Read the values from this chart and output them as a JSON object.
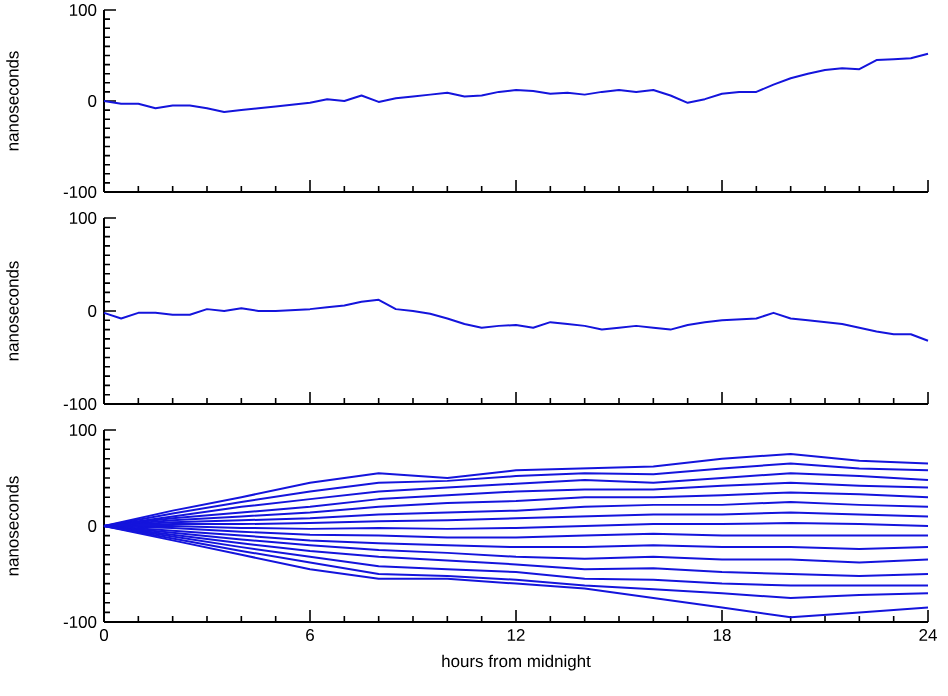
{
  "chart_data": [
    {
      "type": "line",
      "ylabel": "nanoseconds",
      "xlim": [
        0,
        24
      ],
      "ylim": [
        -100,
        100
      ],
      "xticks": [
        0,
        6,
        12,
        18,
        24
      ],
      "yticks": [
        -100,
        0,
        100
      ],
      "tick_labels": "y",
      "marker": "none",
      "x": [
        0,
        0.5,
        1,
        1.5,
        2,
        2.5,
        3,
        3.5,
        4,
        4.5,
        5,
        5.5,
        6,
        6.5,
        7,
        7.5,
        8,
        8.5,
        9,
        9.5,
        10,
        10.5,
        11,
        11.5,
        12,
        12.5,
        13,
        13.5,
        14,
        14.5,
        15,
        15.5,
        16,
        16.5,
        17,
        17.5,
        18,
        18.5,
        19,
        19.5,
        20,
        20.5,
        21,
        21.5,
        22,
        22.5,
        23,
        23.5,
        24
      ],
      "series": [
        {
          "color": "#1414dc",
          "values": [
            0,
            -3,
            -3,
            -8,
            -5,
            -5,
            -8,
            -12,
            -10,
            -8,
            -6,
            -4,
            -2,
            2,
            0,
            6,
            -1,
            3,
            5,
            7,
            9,
            5,
            6,
            10,
            12,
            11,
            8,
            9,
            7,
            10,
            12,
            10,
            12,
            6,
            -2,
            2,
            8,
            10,
            10,
            18,
            25,
            30,
            34,
            36,
            35,
            45,
            46,
            47,
            52
          ]
        }
      ]
    },
    {
      "type": "line",
      "ylabel": "nanoseconds",
      "xlim": [
        0,
        24
      ],
      "ylim": [
        -100,
        100
      ],
      "xticks": [
        0,
        6,
        12,
        18,
        24
      ],
      "yticks": [
        -100,
        0,
        100
      ],
      "tick_labels": "y",
      "marker": "none",
      "x": [
        0,
        0.5,
        1,
        1.5,
        2,
        2.5,
        3,
        3.5,
        4,
        4.5,
        5,
        5.5,
        6,
        6.5,
        7,
        7.5,
        8,
        8.5,
        9,
        9.5,
        10,
        10.5,
        11,
        11.5,
        12,
        12.5,
        13,
        13.5,
        14,
        14.5,
        15,
        15.5,
        16,
        16.5,
        17,
        17.5,
        18,
        18.5,
        19,
        19.5,
        20,
        20.5,
        21,
        21.5,
        22,
        22.5,
        23,
        23.5,
        24
      ],
      "series": [
        {
          "color": "#1414dc",
          "values": [
            -2,
            -8,
            -2,
            -2,
            -4,
            -4,
            2,
            0,
            3,
            0,
            0,
            1,
            2,
            4,
            6,
            10,
            12,
            2,
            0,
            -3,
            -8,
            -14,
            -18,
            -16,
            -15,
            -18,
            -12,
            -14,
            -16,
            -20,
            -18,
            -16,
            -18,
            -20,
            -15,
            -12,
            -10,
            -9,
            -8,
            -2,
            -8,
            -10,
            -12,
            -14,
            -18,
            -22,
            -25,
            -25,
            -32
          ]
        }
      ]
    },
    {
      "type": "line",
      "ylabel": "nanoseconds",
      "xlabel": "hours from midnight",
      "xlim": [
        0,
        24
      ],
      "ylim": [
        -100,
        100
      ],
      "xticks": [
        0,
        6,
        12,
        18,
        24
      ],
      "yticks": [
        -100,
        0,
        100
      ],
      "marker": "none",
      "x": [
        0,
        2,
        4,
        6,
        8,
        10,
        12,
        14,
        16,
        18,
        20,
        22,
        24
      ],
      "series": [
        {
          "color": "#1414dc",
          "values": [
            0,
            16,
            30,
            45,
            55,
            50,
            58,
            60,
            62,
            70,
            75,
            68,
            65
          ]
        },
        {
          "color": "#1414dc",
          "values": [
            0,
            13,
            25,
            36,
            45,
            47,
            52,
            55,
            54,
            60,
            65,
            60,
            58
          ]
        },
        {
          "color": "#1414dc",
          "values": [
            0,
            10,
            20,
            28,
            36,
            40,
            44,
            48,
            45,
            50,
            55,
            52,
            48
          ]
        },
        {
          "color": "#1414dc",
          "values": [
            0,
            8,
            14,
            20,
            28,
            32,
            36,
            38,
            38,
            42,
            45,
            42,
            40
          ]
        },
        {
          "color": "#1414dc",
          "values": [
            0,
            6,
            10,
            14,
            20,
            24,
            26,
            30,
            30,
            32,
            35,
            33,
            30
          ]
        },
        {
          "color": "#1414dc",
          "values": [
            0,
            4,
            6,
            8,
            12,
            14,
            16,
            20,
            22,
            22,
            25,
            22,
            20
          ]
        },
        {
          "color": "#1414dc",
          "values": [
            0,
            2,
            2,
            3,
            5,
            6,
            8,
            10,
            12,
            12,
            14,
            12,
            10
          ]
        },
        {
          "color": "#1414dc",
          "values": [
            0,
            0,
            -2,
            -3,
            -2,
            -3,
            -2,
            0,
            2,
            2,
            3,
            2,
            0
          ]
        },
        {
          "color": "#1414dc",
          "values": [
            0,
            -2,
            -6,
            -9,
            -10,
            -12,
            -12,
            -10,
            -8,
            -10,
            -10,
            -10,
            -10
          ]
        },
        {
          "color": "#1414dc",
          "values": [
            0,
            -5,
            -10,
            -15,
            -18,
            -20,
            -22,
            -22,
            -20,
            -22,
            -22,
            -24,
            -22
          ]
        },
        {
          "color": "#1414dc",
          "values": [
            0,
            -7,
            -14,
            -20,
            -25,
            -28,
            -32,
            -34,
            -32,
            -35,
            -35,
            -38,
            -35
          ]
        },
        {
          "color": "#1414dc",
          "values": [
            0,
            -9,
            -18,
            -26,
            -32,
            -36,
            -40,
            -45,
            -44,
            -48,
            -50,
            -52,
            -50
          ]
        },
        {
          "color": "#1414dc",
          "values": [
            0,
            -11,
            -22,
            -32,
            -42,
            -45,
            -48,
            -55,
            -56,
            -60,
            -62,
            -62,
            -62
          ]
        },
        {
          "color": "#1414dc",
          "values": [
            0,
            -13,
            -26,
            -38,
            -50,
            -52,
            -56,
            -62,
            -66,
            -70,
            -75,
            -72,
            -70
          ]
        },
        {
          "color": "#1414dc",
          "values": [
            0,
            -15,
            -30,
            -45,
            -55,
            -55,
            -60,
            -65,
            -75,
            -85,
            -95,
            -90,
            -85
          ]
        }
      ]
    }
  ]
}
